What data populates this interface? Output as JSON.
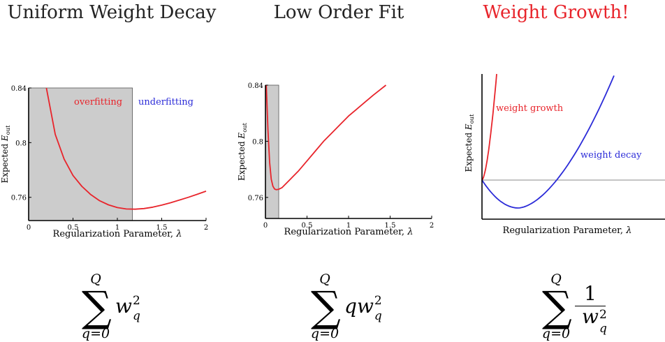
{
  "colors": {
    "red": "#e8242b",
    "blue": "#2b2bd8",
    "gray_fill": "#cccccc",
    "hline": "#888888"
  },
  "panels": [
    {
      "title": "Uniform Weight Decay",
      "title_color": "#222222"
    },
    {
      "title": "Low Order Fit",
      "title_color": "#222222"
    },
    {
      "title": "Weight Growth!",
      "title_color": "#e8242b"
    }
  ],
  "formulas": [
    {
      "upper": "Q",
      "lower": "q=0",
      "coef": "",
      "var": "w",
      "sub": "q",
      "sup": "2",
      "reciprocal": false
    },
    {
      "upper": "Q",
      "lower": "q=0",
      "coef": "q",
      "var": "w",
      "sub": "q",
      "sup": "2",
      "reciprocal": true
    },
    {
      "upper": "Q",
      "lower": "q=0",
      "numerator": "1",
      "var": "w",
      "sub": "q",
      "sup": "2"
    }
  ],
  "chart_data": [
    {
      "type": "line",
      "xlabel": "Regularization Parameter, λ",
      "ylabel": "Expected E_out",
      "xlim": [
        0,
        2
      ],
      "ylim": [
        0.743,
        0.84
      ],
      "xticks": [
        "0",
        "0.5",
        "1",
        "1.5",
        "2"
      ],
      "yticks": [
        "0.76",
        "0.8",
        "0.84"
      ],
      "shaded_region": [
        0,
        1.17
      ],
      "annotations": [
        {
          "text": "overfitting",
          "color": "red"
        },
        {
          "text": "underfitting",
          "color": "blue"
        }
      ],
      "series": [
        {
          "color": "red",
          "x": [
            0.2,
            0.3,
            0.4,
            0.5,
            0.6,
            0.7,
            0.8,
            0.9,
            1.0,
            1.1,
            1.2,
            1.3,
            1.4,
            1.5,
            1.6,
            1.7,
            1.8,
            1.9,
            2.0
          ],
          "y": [
            0.84,
            0.806,
            0.788,
            0.776,
            0.768,
            0.762,
            0.7575,
            0.7545,
            0.7525,
            0.7515,
            0.7513,
            0.7518,
            0.7528,
            0.7543,
            0.756,
            0.758,
            0.76,
            0.7622,
            0.7645
          ]
        }
      ]
    },
    {
      "type": "line",
      "xlabel": "Regularization Parameter, λ",
      "ylabel": "Expected E_out",
      "xlim": [
        0,
        2
      ],
      "ylim": [
        0.745,
        0.84
      ],
      "xticks": [
        "0",
        "0.5",
        "1",
        "1.5",
        "2"
      ],
      "yticks": [
        "0.76",
        "0.8",
        "0.84"
      ],
      "shaded_region": [
        0,
        0.16
      ],
      "series": [
        {
          "color": "red",
          "x": [
            0.01,
            0.03,
            0.05,
            0.07,
            0.09,
            0.11,
            0.13,
            0.16,
            0.2,
            0.3,
            0.4,
            0.5,
            0.6,
            0.7,
            0.8,
            0.9,
            1.0,
            1.1,
            1.2,
            1.3,
            1.45
          ],
          "y": [
            0.84,
            0.808,
            0.785,
            0.773,
            0.768,
            0.766,
            0.7655,
            0.7658,
            0.767,
            0.773,
            0.779,
            0.786,
            0.793,
            0.8,
            0.806,
            0.812,
            0.818,
            0.823,
            0.828,
            0.833,
            0.84
          ]
        }
      ]
    },
    {
      "type": "line",
      "xlabel": "Regularization Parameter, λ",
      "ylabel": "Expected E_out",
      "annotations": [
        {
          "text": "weight growth",
          "color": "red"
        },
        {
          "text": "weight decay",
          "color": "blue"
        }
      ],
      "reference_line": true,
      "series": [
        {
          "name": "weight growth",
          "color": "red"
        },
        {
          "name": "weight decay",
          "color": "blue"
        }
      ]
    }
  ]
}
